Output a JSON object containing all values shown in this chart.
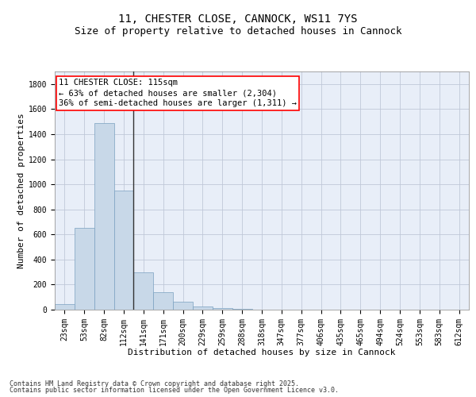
{
  "title_line1": "11, CHESTER CLOSE, CANNOCK, WS11 7YS",
  "title_line2": "Size of property relative to detached houses in Cannock",
  "xlabel": "Distribution of detached houses by size in Cannock",
  "ylabel": "Number of detached properties",
  "categories": [
    "23sqm",
    "53sqm",
    "82sqm",
    "112sqm",
    "141sqm",
    "171sqm",
    "200sqm",
    "229sqm",
    "259sqm",
    "288sqm",
    "318sqm",
    "347sqm",
    "377sqm",
    "406sqm",
    "435sqm",
    "465sqm",
    "494sqm",
    "524sqm",
    "553sqm",
    "583sqm",
    "612sqm"
  ],
  "values": [
    45,
    650,
    1490,
    950,
    300,
    140,
    65,
    25,
    15,
    5,
    0,
    0,
    0,
    0,
    0,
    0,
    0,
    0,
    0,
    0,
    0
  ],
  "bar_color": "#c8d8e8",
  "bar_edgecolor": "#7aa0c0",
  "vline_color": "#333333",
  "annotation_box_text": "11 CHESTER CLOSE: 115sqm\n← 63% of detached houses are smaller (2,304)\n36% of semi-detached houses are larger (1,311) →",
  "ylim": [
    0,
    1900
  ],
  "yticks": [
    0,
    200,
    400,
    600,
    800,
    1000,
    1200,
    1400,
    1600,
    1800
  ],
  "grid_color": "#c0c8d8",
  "background_color": "#e8eef8",
  "footer_line1": "Contains HM Land Registry data © Crown copyright and database right 2025.",
  "footer_line2": "Contains public sector information licensed under the Open Government Licence v3.0.",
  "title_fontsize": 10,
  "subtitle_fontsize": 9,
  "axis_label_fontsize": 8,
  "tick_fontsize": 7,
  "annotation_fontsize": 7.5,
  "footer_fontsize": 6
}
